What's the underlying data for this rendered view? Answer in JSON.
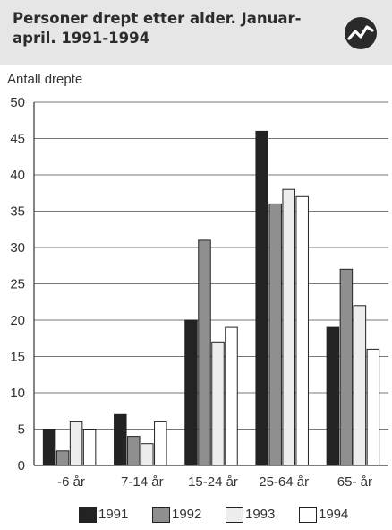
{
  "header": {
    "title": "Personer drept etter alder. Januar-april. 1991-1994",
    "logo_icon": "trend-line-icon"
  },
  "colors": {
    "1991": "#232323",
    "1992": "#8f8f8f",
    "1993": "#ededed",
    "1994": "#ffffff",
    "header_bg": "#e6e6e6"
  },
  "chart_data": {
    "type": "bar",
    "ylabel": "Antall drepte",
    "xlabel": "",
    "ylim": [
      0,
      50
    ],
    "yticks": [
      0,
      5,
      10,
      15,
      20,
      25,
      30,
      35,
      40,
      45,
      50
    ],
    "grid": true,
    "legend_position": "bottom",
    "categories": [
      "-6 år",
      "7-14 år",
      "15-24 år",
      "25-64 år",
      "65- år"
    ],
    "series": [
      {
        "name": "1991",
        "values": [
          5,
          7,
          20,
          46,
          19
        ]
      },
      {
        "name": "1992",
        "values": [
          2,
          4,
          31,
          36,
          27
        ]
      },
      {
        "name": "1993",
        "values": [
          6,
          3,
          17,
          38,
          22
        ]
      },
      {
        "name": "1994",
        "values": [
          5,
          6,
          19,
          37,
          16
        ]
      }
    ]
  }
}
